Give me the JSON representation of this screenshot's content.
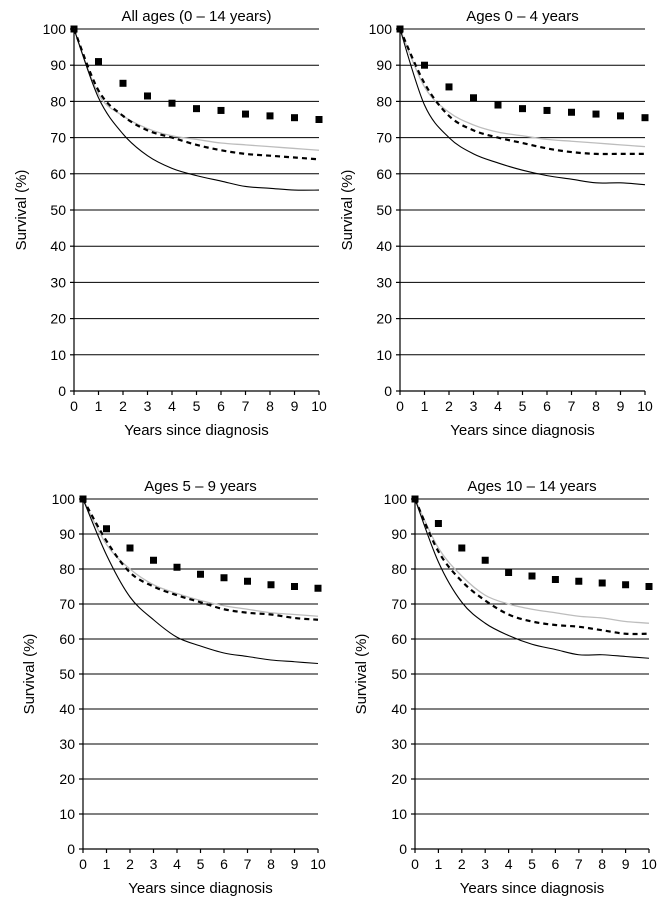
{
  "chart_data": [
    {
      "type": "line",
      "title": "All ages (0 – 14 years)",
      "xlabel": "Years since diagnosis",
      "ylabel": "Survival (%)",
      "xlim": [
        0,
        10
      ],
      "ylim": [
        0,
        100
      ],
      "x_ticks": [
        "0",
        "1",
        "2",
        "3",
        "4",
        "5",
        "6",
        "7",
        "8",
        "9",
        "10"
      ],
      "y_ticks": [
        "0",
        "10",
        "20",
        "30",
        "40",
        "50",
        "60",
        "70",
        "80",
        "90",
        "100"
      ],
      "grid": true,
      "x": [
        0,
        1,
        2,
        3,
        4,
        5,
        6,
        7,
        8,
        9,
        10
      ],
      "series": [
        {
          "style": "square-markers",
          "values": [
            100,
            91,
            85,
            81.5,
            79.5,
            78,
            77.5,
            76.5,
            76,
            75.5,
            75
          ]
        },
        {
          "style": "gray-line",
          "values": [
            100,
            82,
            76,
            72.5,
            70.5,
            69.5,
            68.5,
            68,
            67.5,
            67,
            66.5
          ]
        },
        {
          "style": "dashed-line",
          "values": [
            100,
            83,
            76,
            72,
            70,
            68,
            66.5,
            65.5,
            65,
            64.5,
            64
          ]
        },
        {
          "style": "solid-line",
          "values": [
            100,
            81,
            71,
            65,
            61.5,
            59.5,
            58,
            56.5,
            56,
            55.5,
            55.5
          ]
        }
      ]
    },
    {
      "type": "line",
      "title": "Ages 0 – 4 years",
      "xlabel": "Years since diagnosis",
      "ylabel": "Survival (%)",
      "xlim": [
        0,
        10
      ],
      "ylim": [
        0,
        100
      ],
      "x_ticks": [
        "0",
        "1",
        "2",
        "3",
        "4",
        "5",
        "6",
        "7",
        "8",
        "9",
        "10"
      ],
      "y_ticks": [
        "0",
        "10",
        "20",
        "30",
        "40",
        "50",
        "60",
        "70",
        "80",
        "90",
        "100"
      ],
      "grid": true,
      "x": [
        0,
        1,
        2,
        3,
        4,
        5,
        6,
        7,
        8,
        9,
        10
      ],
      "series": [
        {
          "style": "square-markers",
          "values": [
            100,
            90,
            84,
            81,
            79,
            78,
            77.5,
            77,
            76.5,
            76,
            75.5
          ]
        },
        {
          "style": "gray-line",
          "values": [
            100,
            84,
            77,
            73.5,
            71.5,
            70.5,
            69.5,
            69,
            68.5,
            68,
            67.5
          ]
        },
        {
          "style": "dashed-line",
          "values": [
            100,
            85,
            76,
            72,
            70,
            68.5,
            67,
            66,
            65.5,
            65.5,
            65.5
          ]
        },
        {
          "style": "solid-line",
          "values": [
            100,
            79,
            70,
            65.5,
            63,
            61,
            59.5,
            58.5,
            57.5,
            57.5,
            57
          ]
        }
      ]
    },
    {
      "type": "line",
      "title": "Ages 5 – 9 years",
      "xlabel": "Years since diagnosis",
      "ylabel": "Survival (%)",
      "xlim": [
        0,
        10
      ],
      "ylim": [
        0,
        100
      ],
      "x_ticks": [
        "0",
        "1",
        "2",
        "3",
        "4",
        "5",
        "6",
        "7",
        "8",
        "9",
        "10"
      ],
      "y_ticks": [
        "0",
        "10",
        "20",
        "30",
        "40",
        "50",
        "60",
        "70",
        "80",
        "90",
        "100"
      ],
      "grid": true,
      "x": [
        0,
        1,
        2,
        3,
        4,
        5,
        6,
        7,
        8,
        9,
        10
      ],
      "series": [
        {
          "style": "square-markers",
          "values": [
            100,
            91.5,
            86,
            82.5,
            80.5,
            78.5,
            77.5,
            76.5,
            75.5,
            75,
            74.5
          ]
        },
        {
          "style": "gray-line",
          "values": [
            100,
            87,
            80,
            75.5,
            73,
            71,
            69.5,
            68.5,
            67.5,
            67,
            66.5
          ]
        },
        {
          "style": "dashed-line",
          "values": [
            100,
            88,
            79,
            75,
            72.5,
            70.5,
            68.5,
            67.5,
            67,
            66,
            65.5
          ]
        },
        {
          "style": "solid-line",
          "values": [
            100,
            84,
            72,
            65.5,
            60.5,
            58,
            56,
            55,
            54,
            53.5,
            53
          ]
        }
      ]
    },
    {
      "type": "line",
      "title": "Ages 10 – 14 years",
      "xlabel": "Years since diagnosis",
      "ylabel": "Survival (%)",
      "xlim": [
        0,
        10
      ],
      "ylim": [
        0,
        100
      ],
      "x_ticks": [
        "0",
        "1",
        "2",
        "3",
        "4",
        "5",
        "6",
        "7",
        "8",
        "9",
        "10"
      ],
      "y_ticks": [
        "0",
        "10",
        "20",
        "30",
        "40",
        "50",
        "60",
        "70",
        "80",
        "90",
        "100"
      ],
      "grid": true,
      "x": [
        0,
        1,
        2,
        3,
        4,
        5,
        6,
        7,
        8,
        9,
        10
      ],
      "series": [
        {
          "style": "square-markers",
          "values": [
            100,
            93,
            86,
            82.5,
            79,
            78,
            77,
            76.5,
            76,
            75.5,
            75
          ]
        },
        {
          "style": "gray-line",
          "values": [
            100,
            86,
            78,
            72.5,
            70,
            68.5,
            67.5,
            66.5,
            66,
            65,
            64.5
          ]
        },
        {
          "style": "dashed-line",
          "values": [
            100,
            85,
            76.5,
            71,
            67,
            65,
            64,
            63.5,
            62.5,
            61.5,
            61.5
          ]
        },
        {
          "style": "solid-line",
          "values": [
            100,
            82,
            70.5,
            64.5,
            61,
            58.5,
            57,
            55.5,
            55.5,
            55,
            54.5
          ]
        }
      ]
    }
  ]
}
